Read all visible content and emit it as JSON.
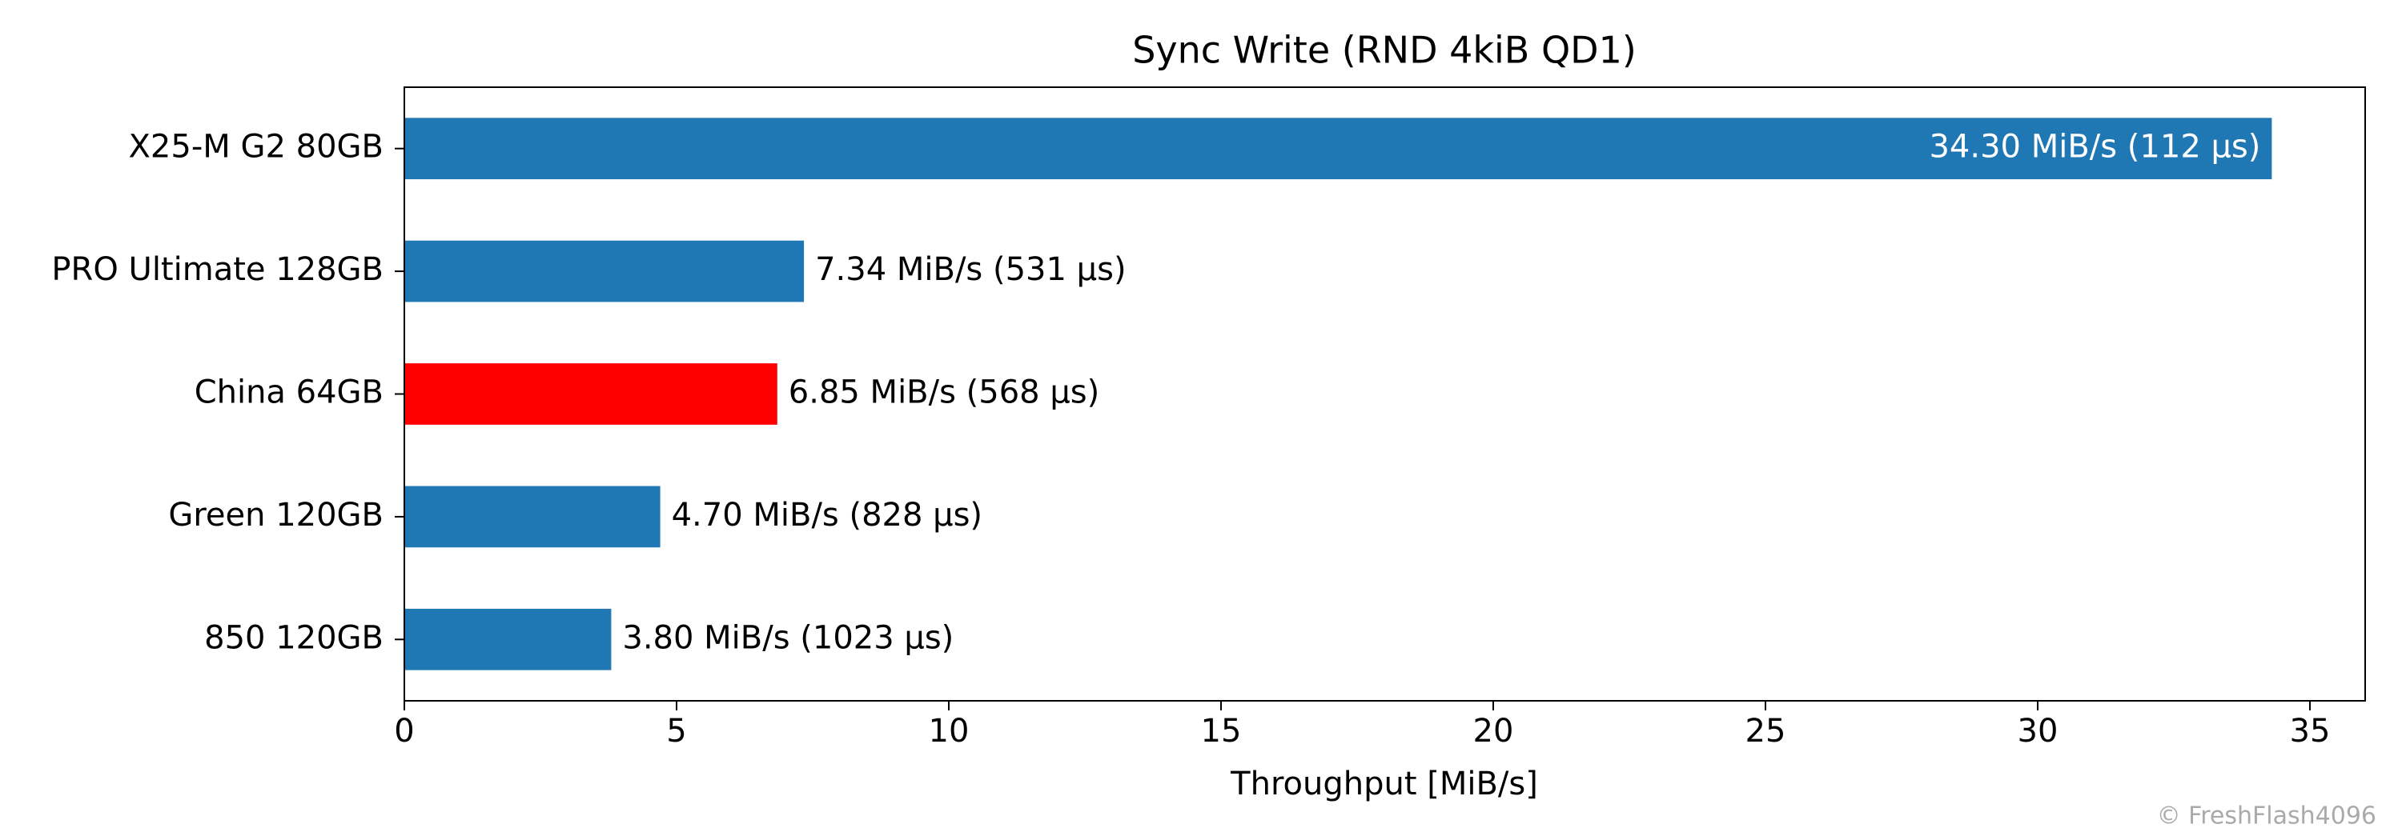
{
  "chart_data": {
    "type": "barh",
    "title": "Sync Write (RND 4kiB QD1)",
    "x_label": "Throughput [MiB/s]",
    "categories": [
      "X25-M G2 80GB",
      "PRO Ultimate 128GB",
      "China 64GB",
      "Green 120GB",
      "850 120GB"
    ],
    "values": [
      34.3,
      7.34,
      6.85,
      4.7,
      3.8
    ],
    "value_labels": [
      "34.30 MiB/s (112 µs)",
      "7.34 MiB/s (531 µs)",
      "6.85 MiB/s (568 µs)",
      "4.70 MiB/s (828 µs)",
      "3.80 MiB/s (1023 µs)"
    ],
    "colors": [
      "#1f77b4",
      "#1f77b4",
      "#ff0000",
      "#1f77b4",
      "#1f77b4"
    ],
    "xlim": [
      0,
      36.015
    ],
    "xticks": [
      0,
      5,
      10,
      15,
      20,
      25,
      30,
      35
    ],
    "grid": false,
    "watermark": "© FreshFlash4096"
  }
}
